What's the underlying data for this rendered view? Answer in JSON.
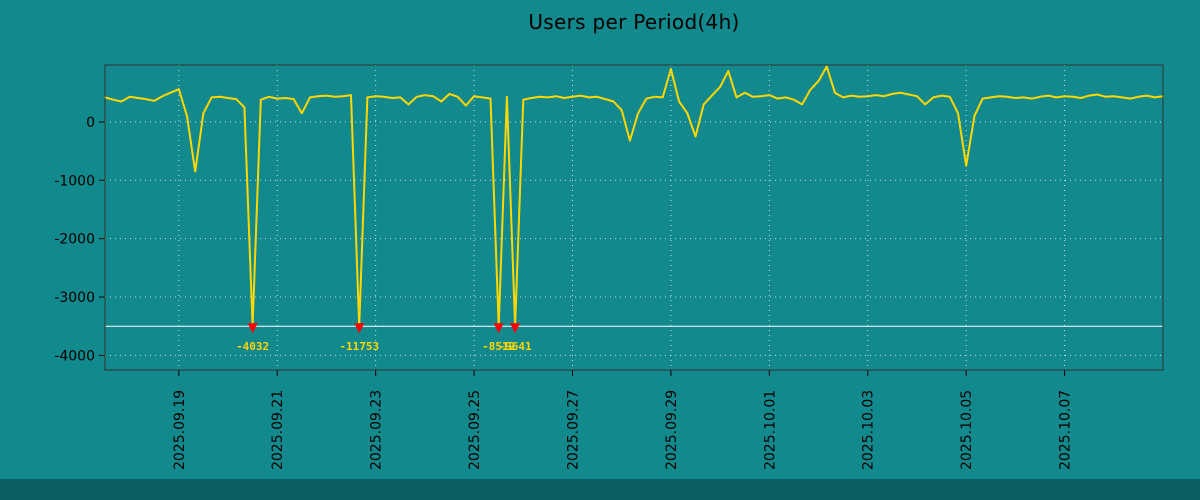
{
  "colors": {
    "background": "#12898c",
    "bottom_bar": "#0a5d61",
    "line": "#ffd700",
    "grid": "#e8fbfb",
    "clip_line": "#ffffff",
    "marker": "#ff0000",
    "text": "#000000",
    "spike_label": "#ffd700",
    "border": "#333333"
  },
  "chart_data": {
    "type": "line",
    "title": "Users per Period(4h)",
    "xlabel": "",
    "ylabel": "",
    "legend": "none",
    "grid": "dotted",
    "period_hours": 4,
    "ylim": [
      -4250,
      975
    ],
    "xlim_days": [
      0,
      21.5
    ],
    "clip_value": -3500,
    "y_ticks": [
      0,
      -1000,
      -2000,
      -3000,
      -4000
    ],
    "x_ticks": [
      {
        "day": 1.5,
        "label": "2025.09.19"
      },
      {
        "day": 3.5,
        "label": "2025.09.21"
      },
      {
        "day": 5.5,
        "label": "2025.09.23"
      },
      {
        "day": 7.5,
        "label": "2025.09.25"
      },
      {
        "day": 9.5,
        "label": "2025.09.27"
      },
      {
        "day": 11.5,
        "label": "2025.09.29"
      },
      {
        "day": 13.5,
        "label": "2025.10.01"
      },
      {
        "day": 15.5,
        "label": "2025.10.03"
      },
      {
        "day": 17.5,
        "label": "2025.10.05"
      },
      {
        "day": 19.5,
        "label": "2025.10.07"
      }
    ],
    "values": [
      420,
      380,
      350,
      430,
      410,
      390,
      360,
      440,
      500,
      560,
      100,
      -850,
      150,
      420,
      430,
      410,
      390,
      250,
      -4032,
      380,
      430,
      400,
      410,
      390,
      150,
      420,
      440,
      450,
      430,
      440,
      460,
      -11753,
      420,
      440,
      430,
      410,
      420,
      300,
      430,
      460,
      440,
      350,
      480,
      430,
      280,
      440,
      420,
      400,
      -8512,
      430,
      -9641,
      380,
      410,
      430,
      420,
      440,
      410,
      430,
      450,
      420,
      430,
      390,
      350,
      200,
      -320,
      150,
      400,
      430,
      420,
      906,
      350,
      150,
      -250,
      300,
      450,
      600,
      870,
      420,
      500,
      430,
      440,
      460,
      400,
      420,
      380,
      300,
      550,
      700,
      950,
      500,
      420,
      450,
      430,
      440,
      460,
      440,
      480,
      500,
      470,
      440,
      300,
      420,
      450,
      430,
      150,
      -750,
      100,
      400,
      420,
      440,
      430,
      410,
      420,
      400,
      430,
      450,
      420,
      440,
      430,
      410,
      450,
      470,
      430,
      440,
      420,
      400,
      430,
      450,
      420,
      440
    ],
    "annotations": [
      {
        "text": "-4032",
        "at_day": 3.0
      },
      {
        "text": "-11753",
        "at_day": 5.1667
      },
      {
        "text": "-8512",
        "at_day": 8.0
      },
      {
        "text": "-9641",
        "at_day": 8.3333
      }
    ]
  }
}
